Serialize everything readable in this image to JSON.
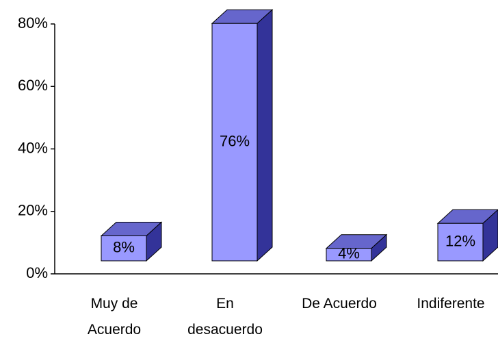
{
  "chart_data": {
    "type": "bar3d",
    "categories": [
      "Muy de Acuerdo",
      "En desacuerdo",
      "De Acuerdo",
      "Indiferente"
    ],
    "values": [
      8,
      76,
      4,
      12
    ],
    "value_labels": [
      "8%",
      "76%",
      "4%",
      "12%"
    ],
    "color": "#9999ff",
    "ylim": [
      0,
      80
    ],
    "yticks": [
      {
        "value": 0,
        "label": "0%"
      },
      {
        "value": 20,
        "label": "20%"
      },
      {
        "value": 40,
        "label": "40%"
      },
      {
        "value": 60,
        "label": "60%"
      },
      {
        "value": 80,
        "label": "80%"
      }
    ]
  }
}
